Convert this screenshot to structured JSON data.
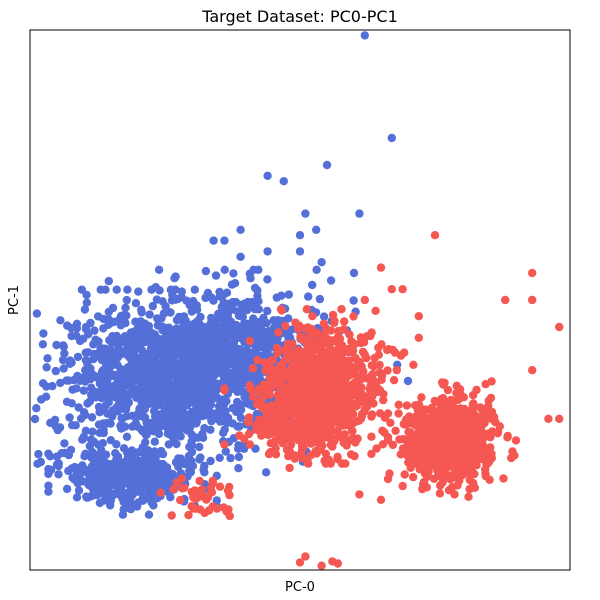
{
  "chart_data": {
    "type": "scatter",
    "title": "Target Dataset: PC0-PC1",
    "xlabel": "PC-0",
    "ylabel": "PC-1",
    "xlim": [
      0,
      100
    ],
    "ylim": [
      0,
      100
    ],
    "ticks": "none",
    "grid": false,
    "legend": "none",
    "series": [
      {
        "color": "#5470d8",
        "clusters": [
          {
            "cx": 25,
            "cy": 35,
            "sx": 11,
            "sy": 6.5,
            "n": 1100
          },
          {
            "cx": 38,
            "cy": 40,
            "sx": 9,
            "sy": 6,
            "n": 700
          },
          {
            "cx": 19,
            "cy": 17,
            "sx": 6,
            "sy": 2.6,
            "n": 420
          }
        ],
        "outliers": [
          [
            62,
            99
          ],
          [
            67,
            80
          ],
          [
            55,
            75
          ],
          [
            44,
            73
          ],
          [
            47,
            72
          ],
          [
            51,
            66
          ],
          [
            61,
            66
          ],
          [
            50,
            62
          ],
          [
            53,
            63
          ],
          [
            39,
            63
          ],
          [
            44,
            59
          ],
          [
            36,
            61
          ],
          [
            34,
            61
          ],
          [
            39,
            58
          ],
          [
            54,
            57
          ],
          [
            50,
            59
          ],
          [
            60,
            55
          ],
          [
            68,
            38
          ],
          [
            70,
            35
          ],
          [
            2,
            20
          ],
          [
            5,
            21
          ]
        ]
      },
      {
        "color": "#f55753",
        "clusters": [
          {
            "cx": 55,
            "cy": 34,
            "sx": 5.5,
            "sy": 5.5,
            "n": 650
          },
          {
            "cx": 49,
            "cy": 28,
            "sx": 5,
            "sy": 3.5,
            "n": 250
          },
          {
            "cx": 78,
            "cy": 24,
            "sx": 4.5,
            "sy": 4.2,
            "n": 650
          },
          {
            "cx": 32,
            "cy": 14,
            "sx": 3,
            "sy": 1.5,
            "n": 40
          }
        ],
        "outliers": [
          [
            75,
            62
          ],
          [
            93,
            55
          ],
          [
            93,
            50
          ],
          [
            98,
            45
          ],
          [
            88,
            50
          ],
          [
            93,
            37
          ],
          [
            96,
            28
          ],
          [
            98,
            28
          ],
          [
            90,
            24
          ],
          [
            85,
            20
          ],
          [
            37,
            10
          ],
          [
            61,
            14
          ],
          [
            65,
            13
          ],
          [
            72,
            47
          ],
          [
            72,
            43
          ],
          [
            71,
            38
          ],
          [
            62,
            50
          ],
          [
            64,
            48
          ],
          [
            67,
            52
          ],
          [
            69,
            52
          ],
          [
            65,
            56
          ],
          [
            54,
            0.8
          ],
          [
            50,
            1.4
          ],
          [
            51,
            2.5
          ],
          [
            56,
            1.6
          ],
          [
            57,
            1.2
          ]
        ]
      }
    ]
  }
}
